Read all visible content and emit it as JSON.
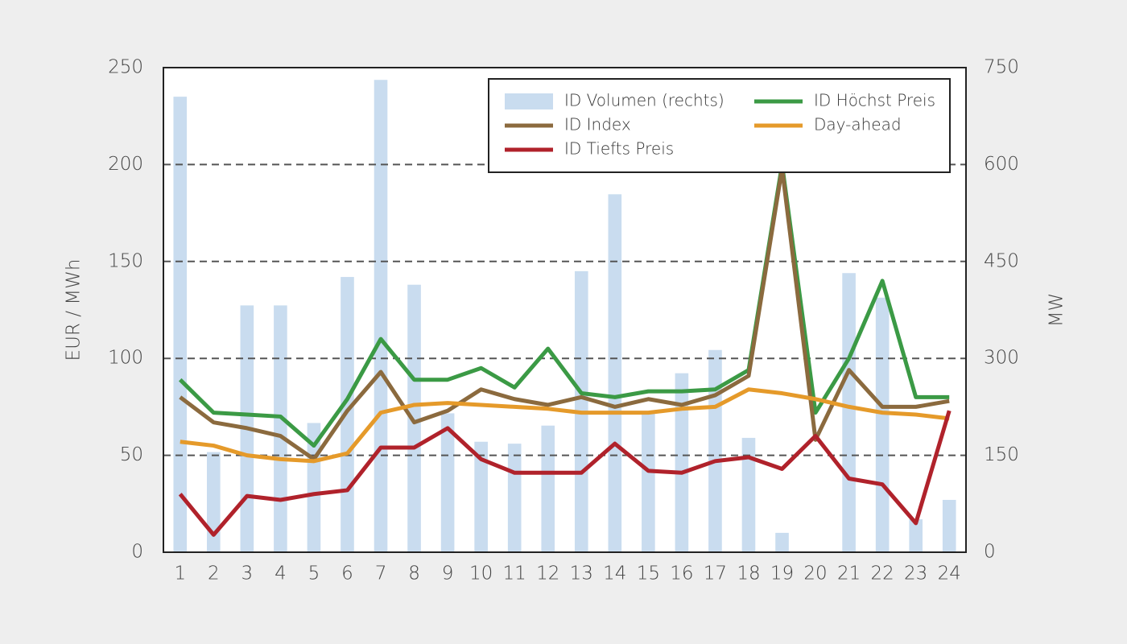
{
  "chart_data": {
    "type": "combo",
    "categories": [
      "1",
      "2",
      "3",
      "4",
      "5",
      "6",
      "7",
      "8",
      "9",
      "10",
      "11",
      "12",
      "13",
      "14",
      "15",
      "16",
      "17",
      "18",
      "19",
      "20",
      "21",
      "22",
      "23",
      "24"
    ],
    "y_label": "EUR / MWh",
    "y2_label": "MW",
    "ylim": [
      0,
      250
    ],
    "yticks": [
      0,
      50,
      100,
      150,
      200,
      250
    ],
    "y2lim": [
      0,
      750
    ],
    "y2ticks": [
      0,
      150,
      300,
      450,
      600,
      750
    ],
    "grid": true,
    "legend": "top-right",
    "series": [
      {
        "name": "ID Volumen (rechts)",
        "type": "bar",
        "axis": "y2",
        "color": "#c9dcef",
        "values": [
          705,
          155,
          382,
          382,
          200,
          426,
          731,
          414,
          215,
          171,
          168,
          196,
          435,
          554,
          215,
          277,
          313,
          177,
          30,
          0,
          432,
          394,
          51,
          81
        ]
      },
      {
        "name": "ID Höchst Preis",
        "type": "line",
        "color": "#3b9a45",
        "values": [
          89,
          72,
          71,
          70,
          55,
          79,
          110,
          89,
          89,
          95,
          85,
          105,
          82,
          80,
          83,
          83,
          84,
          94,
          200,
          72,
          100,
          140,
          80,
          80
        ]
      },
      {
        "name": "ID Index",
        "type": "line",
        "color": "#8b6a3e",
        "values": [
          80,
          67,
          64,
          60,
          48,
          73,
          93,
          67,
          73,
          84,
          79,
          76,
          80,
          75,
          79,
          76,
          81,
          91,
          198,
          58,
          94,
          75,
          75,
          78
        ]
      },
      {
        "name": "Day-ahead",
        "type": "line",
        "color": "#e59a2a",
        "values": [
          57,
          55,
          50,
          48,
          47,
          51,
          72,
          76,
          77,
          76,
          75,
          74,
          72,
          72,
          72,
          74,
          75,
          84,
          82,
          79,
          75,
          72,
          71,
          69
        ]
      },
      {
        "name": "ID Tiefts Preis",
        "type": "line",
        "color": "#b0222b",
        "values": [
          30,
          9,
          29,
          27,
          30,
          32,
          54,
          54,
          64,
          48,
          41,
          41,
          41,
          56,
          42,
          41,
          47,
          49,
          43,
          60,
          38,
          35,
          15,
          73
        ]
      }
    ]
  }
}
